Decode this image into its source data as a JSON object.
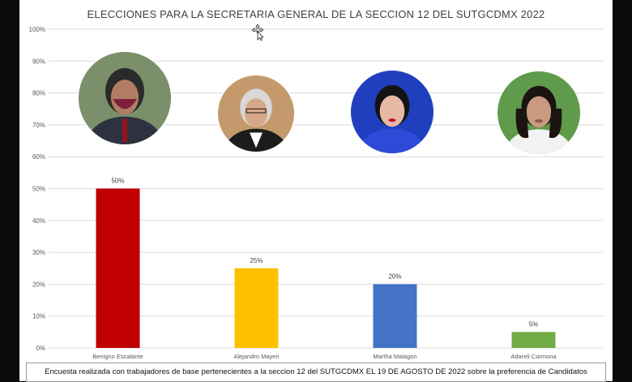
{
  "chart_data": {
    "type": "bar",
    "title": "ELECCIONES PARA LA SECRETARIA GENERAL DE LA SECCION 12 DEL SUTGCDMX 2022",
    "categories": [
      "Benigno Escalante",
      "Alejandro Mayen",
      "Martha Malagon",
      "Adareli Carmona"
    ],
    "values": [
      50,
      25,
      20,
      5
    ],
    "data_labels": [
      "50%",
      "25%",
      "20%",
      "5%"
    ],
    "bar_colors": [
      "#c00000",
      "#ffc000",
      "#4472c4",
      "#70ad47"
    ],
    "ylim": [
      0,
      100
    ],
    "yticks": [
      "0%",
      "10%",
      "20%",
      "30%",
      "40%",
      "50%",
      "60%",
      "70%",
      "80%",
      "90%",
      "100%"
    ],
    "grid": true,
    "legend": "none",
    "candidate_photos": [
      "photo-man-mask",
      "photo-man-glasses",
      "photo-woman-blue",
      "photo-woman-long-hair"
    ]
  },
  "footer": {
    "caption": "Encuesta realizada con trabajadores de base pertenecientes a la seccion 12 del SUTGCDMX EL 19 DE AGOSTO DE 2022 sobre la preferencia de Candidatos"
  },
  "colors": {
    "background": "#ffffff",
    "frame": "#0a0a0a",
    "grid": "#d9d9d9",
    "axis_text": "#595959"
  }
}
